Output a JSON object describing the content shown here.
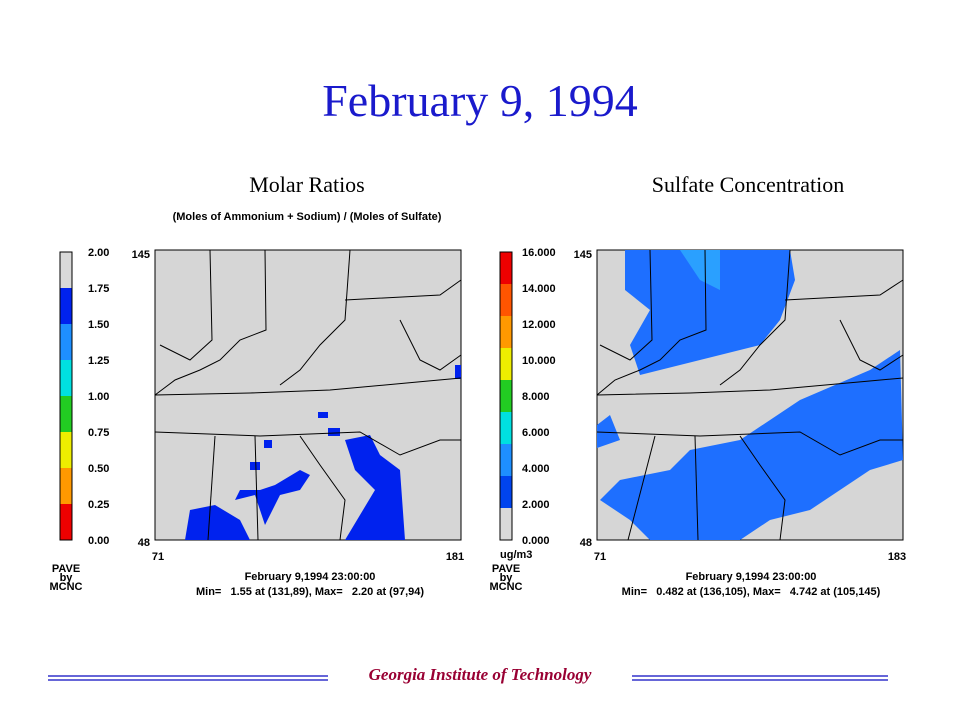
{
  "title": "February 9, 1994",
  "panels": [
    {
      "title": "Molar Ratios",
      "subtitle": "(Moles of Ammonium + Sodium) / (Moles of Sulfate)",
      "colorbar": {
        "labels": [
          "2.00",
          "1.75",
          "1.50",
          "1.25",
          "1.00",
          "0.75",
          "0.50",
          "0.25",
          "0.00"
        ],
        "colors": [
          "#d9d9d9",
          "#0022ee",
          "#1e8fff",
          "#00e0e0",
          "#22cc22",
          "#eeee00",
          "#ff9900",
          "#ee0000"
        ]
      },
      "y_labels": [
        "145",
        "48"
      ],
      "x_labels": [
        "71",
        "181"
      ],
      "logo": [
        "PAVE",
        "by",
        "MCNC"
      ],
      "footer": [
        "February 9,1994 23:00:00",
        "Min=   1.55 at (131,89), Max=   2.20 at (97,94)"
      ]
    },
    {
      "title": "Sulfate Concentration",
      "colorbar": {
        "labels": [
          "16.000",
          "14.000",
          "12.000",
          "10.000",
          "8.000",
          "6.000",
          "4.000",
          "2.000",
          "0.000"
        ],
        "colors": [
          "#ee0000",
          "#ff5500",
          "#ff9900",
          "#eeee00",
          "#22cc22",
          "#00e0e0",
          "#1e8fff",
          "#0044ee",
          "#d9d9d9"
        ]
      },
      "unit": "ug/m3",
      "y_labels": [
        "145",
        "48"
      ],
      "x_labels": [
        "71",
        "183"
      ],
      "logo": [
        "PAVE",
        "by",
        "MCNC"
      ],
      "footer": [
        "February 9,1994 23:00:00",
        "Min=   0.482 at (136,105), Max=   4.742 at (105,145)"
      ]
    }
  ],
  "footer": "Georgia Institute of Technology"
}
